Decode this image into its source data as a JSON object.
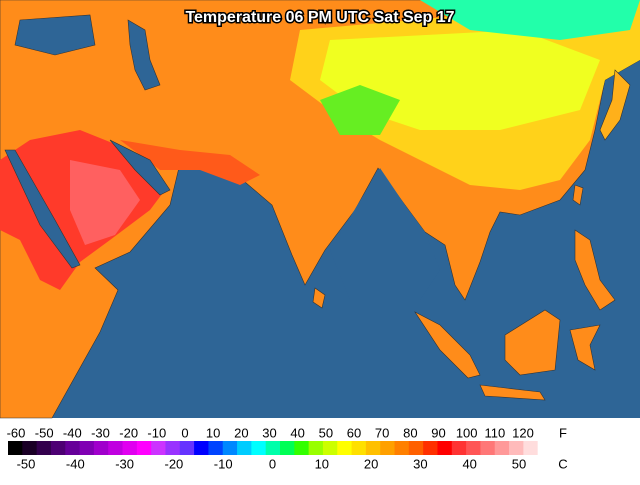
{
  "title": "Temperature 06 PM UTC Sat Sep 17",
  "legend": {
    "fahrenheit": {
      "unit": "F",
      "labels": [
        "-60",
        "-50",
        "-40",
        "-30",
        "-20",
        "-10",
        "0",
        "10",
        "20",
        "30",
        "40",
        "50",
        "60",
        "70",
        "80",
        "90",
        "100",
        "110",
        "120"
      ]
    },
    "celsius": {
      "unit": "C",
      "labels": [
        "-50",
        "-40",
        "-30",
        "-20",
        "-10",
        "0",
        "10",
        "20",
        "30",
        "40",
        "50"
      ]
    },
    "colors": [
      "#000000",
      "#1a0026",
      "#33004d",
      "#4d0073",
      "#660099",
      "#8000b3",
      "#a000cc",
      "#c000e0",
      "#e000f0",
      "#ff00ff",
      "#cc33ff",
      "#9933ff",
      "#6633ff",
      "#0000ff",
      "#0044ff",
      "#0088ff",
      "#00ccff",
      "#00ffff",
      "#00ffaa",
      "#00ff55",
      "#33ff00",
      "#99ff00",
      "#ccff00",
      "#ffff00",
      "#ffe000",
      "#ffc000",
      "#ffa000",
      "#ff8000",
      "#ff6000",
      "#ff3000",
      "#ff0000",
      "#ff3333",
      "#ff5555",
      "#ff7777",
      "#ff9999",
      "#ffbbbb",
      "#ffdddd",
      "#ffffff"
    ]
  }
}
